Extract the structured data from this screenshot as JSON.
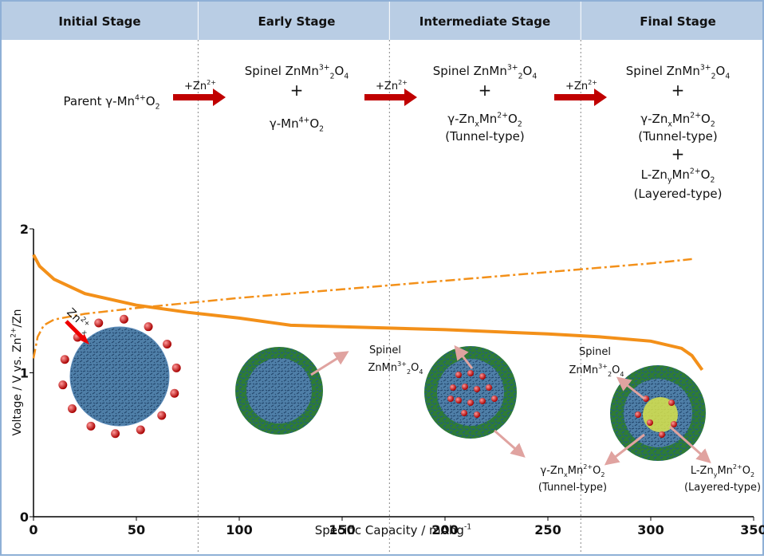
{
  "chart_data": {
    "type": "line",
    "stages": [
      "Initial Stage",
      "Early Stage",
      "Intermediate Stage",
      "Final Stage"
    ],
    "stage_boundaries": [
      80,
      173,
      266
    ],
    "x_label": {
      "parts": [
        [
          "Specific Capacity / mAhg",
          "base"
        ],
        [
          "-1",
          "sup"
        ]
      ]
    },
    "y_label": {
      "parts": [
        [
          "Voltage / V vs. Zn",
          "base"
        ],
        [
          "2+",
          "sup"
        ],
        [
          "/Zn",
          "base"
        ]
      ]
    },
    "xlim": [
      0,
      350
    ],
    "ylim": [
      0,
      2
    ],
    "xticks": [
      0,
      50,
      100,
      150,
      200,
      250,
      300,
      350
    ],
    "yticks": [
      0,
      1,
      2
    ],
    "series": [
      {
        "name": "discharge",
        "color": "#f39019",
        "style": "solid",
        "x": [
          0,
          3,
          10,
          25,
          50,
          75,
          100,
          115,
          125,
          150,
          200,
          250,
          275,
          300,
          315,
          320,
          325
        ],
        "values": [
          1.82,
          1.74,
          1.65,
          1.55,
          1.47,
          1.42,
          1.38,
          1.35,
          1.33,
          1.32,
          1.3,
          1.27,
          1.25,
          1.22,
          1.17,
          1.12,
          1.02
        ]
      },
      {
        "name": "charge",
        "color": "#f39019",
        "style": "dashdot",
        "x": [
          0,
          2,
          5,
          10,
          25,
          50,
          100,
          150,
          200,
          250,
          300,
          320
        ],
        "values": [
          1.1,
          1.25,
          1.33,
          1.37,
          1.41,
          1.45,
          1.52,
          1.58,
          1.64,
          1.7,
          1.76,
          1.79
        ]
      }
    ],
    "annotations": [
      {
        "parts": [
          [
            "Parent γ-Mn",
            "base"
          ],
          [
            "4+",
            "sup"
          ],
          [
            "O",
            "base"
          ],
          [
            "2",
            "sub"
          ]
        ]
      },
      {
        "parts": [
          [
            "+Zn",
            "base"
          ],
          [
            "2+",
            "sup"
          ]
        ]
      },
      {
        "parts": [
          [
            "+Zn",
            "base"
          ],
          [
            "2+",
            "sup"
          ]
        ]
      },
      {
        "parts": [
          [
            "+Zn",
            "base"
          ],
          [
            "2+",
            "sup"
          ]
        ]
      },
      {
        "parts": [
          [
            "Spinel  ZnMn",
            "base"
          ],
          [
            "3+",
            "sup"
          ],
          [
            "2",
            "sub"
          ],
          [
            "O",
            "base"
          ],
          [
            "4",
            "sub"
          ]
        ]
      },
      {
        "parts": [
          [
            "+",
            "base"
          ]
        ]
      },
      {
        "parts": [
          [
            "γ-Mn",
            "base"
          ],
          [
            "4+",
            "sup"
          ],
          [
            "O",
            "base"
          ],
          [
            "2",
            "sub"
          ]
        ]
      },
      {
        "parts": [
          [
            "Spinel  ZnMn",
            "base"
          ],
          [
            "3+",
            "sup"
          ],
          [
            "2",
            "sub"
          ],
          [
            "O",
            "base"
          ],
          [
            "4",
            "sub"
          ]
        ]
      },
      {
        "parts": [
          [
            "+",
            "base"
          ]
        ]
      },
      {
        "parts": [
          [
            "γ-Zn",
            "base"
          ],
          [
            "x",
            "sub"
          ],
          [
            "Mn",
            "base"
          ],
          [
            "2+",
            "sup"
          ],
          [
            "O",
            "base"
          ],
          [
            "2",
            "sub"
          ]
        ]
      },
      {
        "parts": [
          [
            "(Tunnel-type)",
            "base"
          ]
        ]
      },
      {
        "parts": [
          [
            "Spinel  ZnMn",
            "base"
          ],
          [
            "3+",
            "sup"
          ],
          [
            "2",
            "sub"
          ],
          [
            "O",
            "base"
          ],
          [
            "4",
            "sub"
          ]
        ]
      },
      {
        "parts": [
          [
            "+",
            "base"
          ]
        ]
      },
      {
        "parts": [
          [
            "γ-Zn",
            "base"
          ],
          [
            "x",
            "sub"
          ],
          [
            "Mn",
            "base"
          ],
          [
            "2+",
            "sup"
          ],
          [
            "O",
            "base"
          ],
          [
            "2",
            "sub"
          ]
        ]
      },
      {
        "parts": [
          [
            "(Tunnel-type)",
            "base"
          ]
        ]
      },
      {
        "parts": [
          [
            "+",
            "base"
          ]
        ]
      },
      {
        "parts": [
          [
            "L-Zn",
            "base"
          ],
          [
            "y",
            "sub"
          ],
          [
            "Mn",
            "base"
          ],
          [
            "2+",
            "sup"
          ],
          [
            "O",
            "base"
          ],
          [
            "2",
            "sub"
          ]
        ]
      },
      {
        "parts": [
          [
            "(Layered-type)",
            "base"
          ]
        ]
      },
      {
        "parts": [
          [
            "Zn",
            "base"
          ],
          [
            "2+",
            "sup"
          ],
          [
            "x",
            "sub"
          ]
        ]
      },
      {
        "parts": [
          [
            "Spinel",
            "base"
          ]
        ]
      },
      {
        "parts": [
          [
            "ZnMn",
            "base"
          ],
          [
            "3+",
            "sup"
          ],
          [
            "2",
            "sub"
          ],
          [
            "O",
            "base"
          ],
          [
            "4",
            "sub"
          ]
        ]
      },
      {
        "parts": [
          [
            "γ-Zn",
            "base"
          ],
          [
            "x",
            "sub"
          ],
          [
            "Mn",
            "base"
          ],
          [
            "2+",
            "sup"
          ],
          [
            "O",
            "base"
          ],
          [
            "2",
            "sub"
          ]
        ]
      },
      {
        "parts": [
          [
            "(Tunnel-type)",
            "base"
          ]
        ]
      },
      {
        "parts": [
          [
            "Spinel",
            "base"
          ]
        ]
      },
      {
        "parts": [
          [
            "ZnMn",
            "base"
          ],
          [
            "3+",
            "sup"
          ],
          [
            "2",
            "sub"
          ],
          [
            "O",
            "base"
          ],
          [
            "4",
            "sub"
          ]
        ]
      },
      {
        "parts": [
          [
            "L-Zn",
            "base"
          ],
          [
            "y",
            "sub"
          ],
          [
            "Mn",
            "base"
          ],
          [
            "2+",
            "sup"
          ],
          [
            "O",
            "base"
          ],
          [
            "2",
            "sub"
          ]
        ]
      },
      {
        "parts": [
          [
            "(Layered-type)",
            "base"
          ]
        ]
      }
    ]
  }
}
